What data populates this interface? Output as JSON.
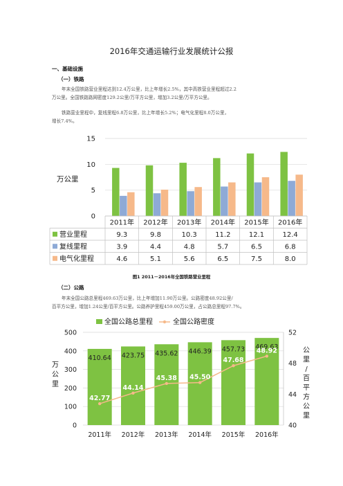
{
  "doc": {
    "title": "2016年交通运输行业发展统计公报",
    "section1": "一、基础设施",
    "sub1": "（一）铁路",
    "p1a": "年末全国铁路营业里程达到12.4万公里，比上年增长2.5%，其中高铁营业里程超过2.2",
    "p1b": "万公里。全国铁路路网密度129.2公里/万平方公里，增加3.2公里/万平方公里。",
    "p2a": "铁路营业里程中，复线里程6.8万公里，比上年增长5.2%；电气化里程8.0万公里，",
    "p2b": "增长7.4%。",
    "caption1": "图1  2011－2016年全国铁路营业里程",
    "sub2": "（二）公路",
    "p3a": "年末全国公路总里程469.63万公里，比上年增加11.90万公里。公路密度48.92公里/",
    "p3b": "百平方公里，增加1.24公里/百平方公里。公路养护里程459.00万公里，占公路总里程97.7%。"
  },
  "chart_data": [
    {
      "type": "bar",
      "categories": [
        "2011年",
        "2012年",
        "2013年",
        "2014年",
        "2015年",
        "2016年"
      ],
      "series": [
        {
          "name": "营业里程",
          "values": [
            9.3,
            9.8,
            10.3,
            11.2,
            12.1,
            12.4
          ],
          "color": "#7ec242"
        },
        {
          "name": "复线里程",
          "values": [
            3.9,
            4.4,
            4.8,
            5.7,
            6.5,
            6.8
          ],
          "color": "#8eaad6"
        },
        {
          "name": "电气化里程",
          "values": [
            4.6,
            5.1,
            5.6,
            6.5,
            7.5,
            8.0
          ],
          "color": "#f6b98a"
        }
      ],
      "ylabel": "万公里",
      "ylim": [
        0,
        15
      ],
      "yticks": [
        0,
        5,
        10,
        15
      ],
      "legend": "data-table"
    },
    {
      "type": "bar",
      "categories": [
        "2011年",
        "2012年",
        "2013年",
        "2014年",
        "2015年",
        "2016年"
      ],
      "series": [
        {
          "name": "全国公路总里程",
          "type": "bar",
          "values": [
            410.64,
            423.75,
            435.62,
            446.39,
            457.73,
            469.63
          ],
          "color": "#7ec242"
        },
        {
          "name": "全国公路密度",
          "type": "line",
          "axis": "right",
          "values": [
            42.77,
            44.14,
            45.38,
            45.5,
            47.68,
            48.92
          ],
          "color": "#f6b98a"
        }
      ],
      "ylabel": "万公里",
      "ylabel_right": "公里/百平方公里",
      "ylim": [
        0,
        500
      ],
      "yticks": [
        0,
        100,
        200,
        300,
        400,
        500
      ],
      "ylim_right": [
        40,
        52
      ],
      "yticks_right": [
        40,
        44,
        48,
        52
      ],
      "legend": "top"
    }
  ]
}
